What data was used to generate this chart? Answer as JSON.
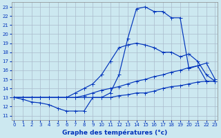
{
  "xlabel": "Graphe des températures (°c)",
  "bg_color": "#cce8f0",
  "grid_color": "#aabbcc",
  "line_color": "#0033bb",
  "x_ticks": [
    0,
    1,
    2,
    3,
    4,
    5,
    6,
    7,
    8,
    9,
    10,
    11,
    12,
    13,
    14,
    15,
    16,
    17,
    18,
    19,
    20,
    21,
    22,
    23
  ],
  "y_ticks": [
    11,
    12,
    13,
    14,
    15,
    16,
    17,
    18,
    19,
    20,
    21,
    22,
    23
  ],
  "xlim": [
    -0.3,
    23.3
  ],
  "ylim": [
    10.5,
    23.5
  ],
  "lines": [
    {
      "x": [
        0,
        1,
        2,
        3,
        4,
        5,
        6,
        7,
        8,
        9,
        10,
        11,
        12,
        13,
        14,
        15,
        16,
        17,
        18,
        19,
        20,
        21,
        22,
        23
      ],
      "y": [
        13.0,
        12.8,
        12.5,
        12.4,
        12.2,
        11.8,
        11.5,
        11.5,
        11.5,
        13.0,
        13.0,
        13.0,
        13.2,
        13.3,
        13.5,
        13.5,
        13.7,
        14.0,
        14.2,
        14.3,
        14.5,
        14.7,
        14.8,
        14.8
      ]
    },
    {
      "x": [
        0,
        1,
        2,
        3,
        4,
        5,
        6,
        7,
        8,
        9,
        10,
        11,
        12,
        13,
        14,
        15,
        16,
        17,
        18,
        19,
        20,
        21,
        22,
        23
      ],
      "y": [
        13.0,
        13.0,
        13.0,
        13.0,
        13.0,
        13.0,
        13.0,
        13.0,
        13.2,
        13.5,
        13.8,
        14.0,
        14.2,
        14.5,
        14.8,
        15.0,
        15.3,
        15.5,
        15.8,
        16.0,
        16.3,
        16.5,
        16.8,
        15.0
      ]
    },
    {
      "x": [
        0,
        1,
        2,
        3,
        4,
        5,
        6,
        7,
        8,
        9,
        10,
        11,
        12,
        13,
        14,
        15,
        16,
        17,
        18,
        19,
        20,
        21,
        22,
        23
      ],
      "y": [
        13.0,
        13.0,
        13.0,
        13.0,
        13.0,
        13.0,
        13.0,
        13.5,
        14.0,
        14.5,
        15.5,
        17.0,
        18.5,
        18.8,
        19.0,
        18.8,
        18.5,
        18.0,
        18.0,
        17.5,
        17.8,
        17.0,
        15.5,
        14.8
      ]
    },
    {
      "x": [
        0,
        1,
        2,
        3,
        4,
        5,
        6,
        7,
        8,
        9,
        10,
        11,
        12,
        13,
        14,
        15,
        16,
        17,
        18,
        19,
        20,
        21,
        22,
        23
      ],
      "y": [
        13.0,
        13.0,
        13.0,
        13.0,
        13.0,
        13.0,
        13.0,
        13.0,
        13.0,
        13.0,
        13.0,
        13.5,
        15.5,
        19.5,
        22.8,
        23.0,
        22.5,
        22.5,
        21.8,
        21.8,
        16.2,
        16.5,
        14.8,
        14.8
      ]
    }
  ]
}
